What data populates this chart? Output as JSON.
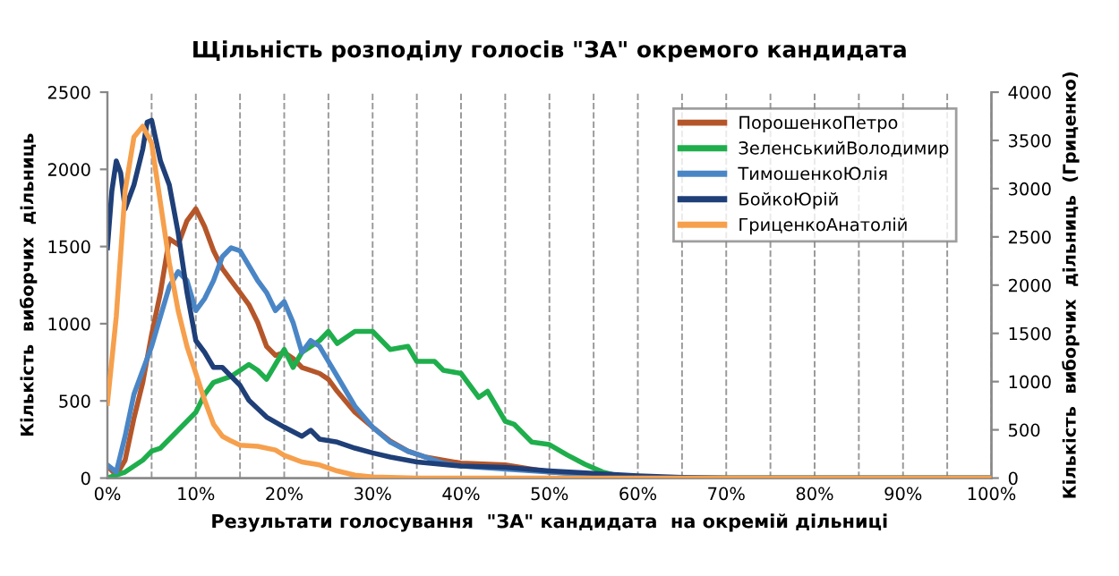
{
  "chart_data": {
    "type": "line",
    "title": "Щільність розподілу голосів \"ЗА\" окремого кандидата",
    "xlabel": "Результати голосування  \"ЗА\" кандидата  на окремій дільниці",
    "ylabel": "Кількість  виборчих  дільниць",
    "y2label": "Кількість  виборчих  дільниць  (Гриценко)",
    "xlim": [
      0,
      100
    ],
    "xticks": [
      {
        "value": 0,
        "label": "0%"
      },
      {
        "value": 5,
        "label": null
      },
      {
        "value": 10,
        "label": "10%"
      },
      {
        "value": 15,
        "label": null
      },
      {
        "value": 20,
        "label": "20%"
      },
      {
        "value": 25,
        "label": null
      },
      {
        "value": 30,
        "label": "30%"
      },
      {
        "value": 35,
        "label": null
      },
      {
        "value": 40,
        "label": "40%"
      },
      {
        "value": 45,
        "label": null
      },
      {
        "value": 50,
        "label": "50%"
      },
      {
        "value": 55,
        "label": null
      },
      {
        "value": 60,
        "label": "60%"
      },
      {
        "value": 65,
        "label": null
      },
      {
        "value": 70,
        "label": "70%"
      },
      {
        "value": 75,
        "label": null
      },
      {
        "value": 80,
        "label": "80%"
      },
      {
        "value": 85,
        "label": null
      },
      {
        "value": 90,
        "label": "90%"
      },
      {
        "value": 95,
        "label": null
      },
      {
        "value": 100,
        "label": "100%"
      }
    ],
    "ylim": [
      0,
      2500
    ],
    "yticks": [
      0,
      500,
      1000,
      1500,
      2000,
      2500
    ],
    "y2lim": [
      0,
      4000
    ],
    "y2ticks": [
      0,
      500,
      1000,
      1500,
      2000,
      2500,
      3000,
      3500,
      4000
    ],
    "grid": "x",
    "legend": "top right",
    "marker": "none",
    "line_style": "solid",
    "series": [
      {
        "name": "ПорошенкоПетро",
        "color": "#b5562a",
        "x": [
          0,
          1,
          2,
          3,
          4,
          5,
          6,
          7,
          8,
          9,
          10,
          11,
          12,
          13,
          14,
          15,
          16,
          17,
          18,
          19,
          20,
          21,
          22,
          23,
          24,
          25,
          26,
          28,
          30,
          32,
          34,
          36,
          38,
          40,
          45,
          50,
          55,
          60,
          65,
          100
        ],
        "values": [
          78,
          19,
          116,
          388,
          620,
          930,
          1202,
          1550,
          1512,
          1667,
          1744,
          1628,
          1473,
          1357,
          1279,
          1202,
          1124,
          1008,
          853,
          795,
          814,
          775,
          717,
          698,
          678,
          640,
          562,
          426,
          330,
          240,
          174,
          136,
          116,
          97,
          85,
          39,
          20,
          8,
          0,
          0
        ]
      },
      {
        "name": "ЗеленськийВолодимир",
        "color": "#1fae4c",
        "x": [
          0,
          2,
          4,
          5,
          6,
          8,
          10,
          11,
          12,
          14,
          16,
          17,
          18,
          19,
          20,
          21,
          22,
          24,
          25,
          26,
          28,
          30,
          32,
          34,
          35,
          37,
          38,
          40,
          42,
          43,
          45,
          46,
          48,
          50,
          52,
          54,
          56,
          58,
          60,
          100
        ],
        "values": [
          0,
          39,
          116,
          174,
          194,
          310,
          426,
          543,
          620,
          659,
          736,
          698,
          640,
          736,
          833,
          717,
          814,
          891,
          950,
          872,
          950,
          950,
          833,
          853,
          756,
          756,
          698,
          678,
          523,
          562,
          368,
          349,
          233,
          217,
          150,
          90,
          40,
          10,
          0,
          0
        ]
      },
      {
        "name": "ТимошенкоЮлія",
        "color": "#4a86c6",
        "x": [
          0,
          1,
          2,
          3,
          4,
          5,
          6,
          7,
          8,
          9,
          10,
          11,
          12,
          13,
          14,
          15,
          16,
          17,
          18,
          19,
          20,
          21,
          22,
          23,
          24,
          25,
          26,
          28,
          30,
          32,
          34,
          36,
          38,
          40,
          45,
          50,
          55,
          60,
          65,
          100
        ],
        "values": [
          85,
          39,
          271,
          543,
          698,
          853,
          1047,
          1240,
          1337,
          1279,
          1085,
          1163,
          1279,
          1434,
          1492,
          1473,
          1376,
          1279,
          1202,
          1085,
          1143,
          1008,
          814,
          891,
          853,
          756,
          659,
          465,
          330,
          233,
          174,
          136,
          97,
          78,
          58,
          39,
          20,
          8,
          0,
          0
        ]
      },
      {
        "name": "БойкоЮрій",
        "color": "#1f3f78",
        "x": [
          0,
          0.5,
          1,
          1.5,
          2,
          3,
          4,
          4.5,
          5,
          6,
          7,
          8,
          9,
          10,
          11,
          12,
          13,
          14,
          15,
          16,
          18,
          20,
          22,
          23,
          24,
          26,
          28,
          30,
          32,
          35,
          40,
          45,
          50,
          55,
          60,
          65,
          70,
          100
        ],
        "values": [
          1492,
          1860,
          2054,
          1977,
          1744,
          1899,
          2132,
          2306,
          2318,
          2054,
          1899,
          1589,
          1202,
          891,
          814,
          717,
          717,
          659,
          601,
          504,
          395,
          330,
          271,
          310,
          252,
          233,
          194,
          163,
          136,
          105,
          78,
          70,
          47,
          30,
          15,
          5,
          0,
          0
        ]
      },
      {
        "name": "ГриценкоАнатолій",
        "color": "#f6a04d",
        "axis": "y2",
        "x": [
          0,
          1,
          2,
          3,
          4,
          5,
          6,
          7,
          8,
          9,
          10,
          11,
          12,
          13,
          14,
          15,
          17,
          19,
          20,
          22,
          24,
          26,
          28,
          30,
          35,
          100
        ],
        "values": [
          775,
          1674,
          2976,
          3534,
          3646,
          3472,
          2852,
          2232,
          1736,
          1364,
          1085,
          806,
          558,
          434,
          384,
          341,
          329,
          291,
          236,
          167,
          136,
          74,
          31,
          12,
          0,
          0
        ]
      }
    ]
  }
}
